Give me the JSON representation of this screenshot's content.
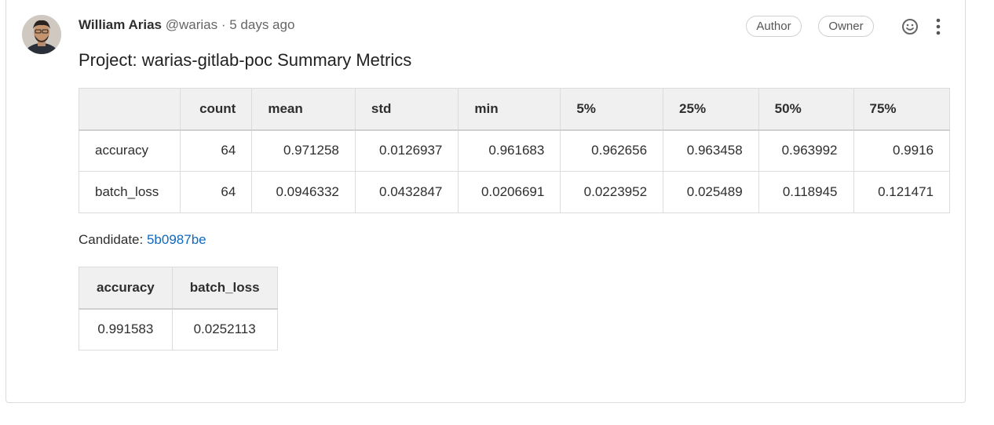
{
  "comment": {
    "author_name": "William Arias",
    "handle": "@warias",
    "separator": "·",
    "time": "5 days ago",
    "badges": [
      "Author",
      "Owner"
    ],
    "title": "Project: warias-gitlab-poc Summary Metrics"
  },
  "metrics_table": {
    "headers": [
      "",
      "count",
      "mean",
      "std",
      "min",
      "5%",
      "25%",
      "50%",
      "75%"
    ],
    "rows": [
      [
        "accuracy",
        "64",
        "0.971258",
        "0.0126937",
        "0.961683",
        "0.962656",
        "0.963458",
        "0.963992",
        "0.9916"
      ],
      [
        "batch_loss",
        "64",
        "0.0946332",
        "0.0432847",
        "0.0206691",
        "0.0223952",
        "0.025489",
        "0.118945",
        "0.121471"
      ]
    ]
  },
  "candidate": {
    "label": "Candidate:",
    "commit": "5b0987be"
  },
  "candidate_table": {
    "headers": [
      "accuracy",
      "batch_loss"
    ],
    "rows": [
      [
        "0.991583",
        "0.0252113"
      ]
    ]
  },
  "icons": {
    "emoji": "smiley-icon",
    "more": "kebab-menu-icon"
  },
  "colors": {
    "link": "#1068bf",
    "header_bg": "#f0f0f0",
    "border": "#dcdcdc"
  }
}
